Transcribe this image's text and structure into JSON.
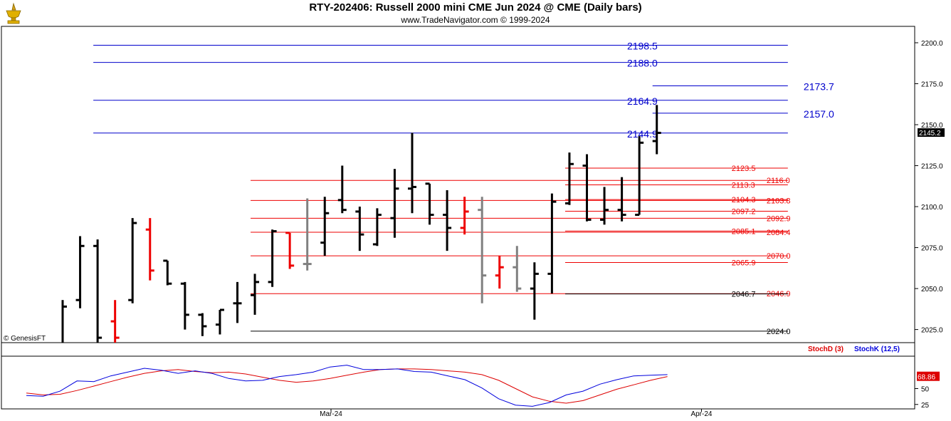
{
  "header": {
    "title": "RTY-202406:  Russell 2000 mini CME Jun 2024 @ CME  (Daily bars)",
    "subtitle": "www.TradeNavigator.com © 1999-2024",
    "logo_icon": "gold-trophy-icon"
  },
  "watermark": "© GenesisFT",
  "colors": {
    "up_bar": "#000000",
    "down_bar": "#ee0000",
    "gray_bar": "#808080",
    "support_line": "#ee0000",
    "resistance_line": "#0000cc",
    "stoch_d": "#dd0000",
    "stoch_k": "#0000dd",
    "last_price_bg": "#000000"
  },
  "chart_data": [
    {
      "type": "ohlc",
      "title": "RTY-202406 Daily bars",
      "ylim": [
        2017,
        2210
      ],
      "y_ticks": [
        "2025.0",
        "2050.0",
        "2075.0",
        "2100.0",
        "2125.0",
        "2150.0",
        "2175.0",
        "2200.0"
      ],
      "x_ticks": [
        {
          "label": "Mar-24",
          "bar_index": 15
        },
        {
          "label": "Apr-24",
          "bar_index": 36.2
        }
      ],
      "last_price_label": "2145.2",
      "bars": [
        {
          "o": 2015,
          "h": 2043,
          "l": 2015,
          "c": 2039,
          "k": "up"
        },
        {
          "o": 2043,
          "h": 2082,
          "l": 2038,
          "c": 2076,
          "k": "up"
        },
        {
          "o": 2076,
          "h": 2080,
          "l": 2015,
          "c": 2020,
          "k": "up"
        },
        {
          "o": 2030,
          "h": 2043,
          "l": 2015,
          "c": 2020,
          "k": "down"
        },
        {
          "o": 2043,
          "h": 2093,
          "l": 2041,
          "c": 2090,
          "k": "up"
        },
        {
          "o": 2086,
          "h": 2093,
          "l": 2055,
          "c": 2061,
          "k": "down"
        },
        {
          "o": 2067,
          "h": 2067,
          "l": 2052,
          "c": 2053,
          "k": "up"
        },
        {
          "o": 2053,
          "h": 2054,
          "l": 2025,
          "c": 2034,
          "k": "up"
        },
        {
          "o": 2034,
          "h": 2035,
          "l": 2021,
          "c": 2027,
          "k": "up"
        },
        {
          "o": 2028,
          "h": 2037,
          "l": 2022,
          "c": 2037,
          "k": "up"
        },
        {
          "o": 2041,
          "h": 2054,
          "l": 2029,
          "c": 2041,
          "k": "up"
        },
        {
          "o": 2046,
          "h": 2059,
          "l": 2034,
          "c": 2054,
          "k": "up"
        },
        {
          "o": 2054,
          "h": 2086,
          "l": 2051,
          "c": 2085,
          "k": "up"
        },
        {
          "o": 2084,
          "h": 2084,
          "l": 2062,
          "c": 2064,
          "k": "down"
        },
        {
          "o": 2065,
          "h": 2105,
          "l": 2061,
          "c": 2065,
          "k": "gray"
        },
        {
          "o": 2078,
          "h": 2106,
          "l": 2070,
          "c": 2096,
          "k": "up"
        },
        {
          "o": 2104,
          "h": 2125,
          "l": 2096,
          "c": 2098,
          "k": "up"
        },
        {
          "o": 2097,
          "h": 2100,
          "l": 2073,
          "c": 2083,
          "k": "up"
        },
        {
          "o": 2077,
          "h": 2099,
          "l": 2076,
          "c": 2095,
          "k": "up"
        },
        {
          "o": 2093,
          "h": 2123,
          "l": 2081,
          "c": 2111,
          "k": "up"
        },
        {
          "o": 2111,
          "h": 2145,
          "l": 2096,
          "c": 2112,
          "k": "up"
        },
        {
          "o": 2114,
          "h": 2114,
          "l": 2089,
          "c": 2095,
          "k": "up"
        },
        {
          "o": 2095,
          "h": 2110,
          "l": 2073,
          "c": 2087,
          "k": "up"
        },
        {
          "o": 2087,
          "h": 2106,
          "l": 2083,
          "c": 2097,
          "k": "down"
        },
        {
          "o": 2098,
          "h": 2106,
          "l": 2041,
          "c": 2058,
          "k": "gray"
        },
        {
          "o": 2058,
          "h": 2070,
          "l": 2050,
          "c": 2063,
          "k": "down"
        },
        {
          "o": 2063,
          "h": 2076,
          "l": 2048,
          "c": 2050,
          "k": "gray"
        },
        {
          "o": 2050,
          "h": 2066,
          "l": 2031,
          "c": 2059,
          "k": "up"
        },
        {
          "o": 2059,
          "h": 2108,
          "l": 2047,
          "c": 2103,
          "k": "up"
        },
        {
          "o": 2102,
          "h": 2133,
          "l": 2101,
          "c": 2126,
          "k": "up"
        },
        {
          "o": 2125,
          "h": 2132,
          "l": 2091,
          "c": 2092,
          "k": "up"
        },
        {
          "o": 2092,
          "h": 2112,
          "l": 2089,
          "c": 2098,
          "k": "up"
        },
        {
          "o": 2098,
          "h": 2118,
          "l": 2091,
          "c": 2095,
          "k": "up"
        },
        {
          "o": 2095,
          "h": 2143,
          "l": 2095,
          "c": 2139,
          "k": "up"
        },
        {
          "o": 2140,
          "h": 2162,
          "l": 2132,
          "c": 2145,
          "k": "up"
        }
      ],
      "levels": [
        {
          "label": "2198.5",
          "v": 2198.5,
          "c": "blue",
          "x0": 2,
          "x1": 41.5,
          "lx": 32.3,
          "la": "start"
        },
        {
          "label": "2188.0",
          "v": 2188.0,
          "c": "blue",
          "x0": 2,
          "x1": 41.5,
          "lx": 32.3,
          "la": "start"
        },
        {
          "label": "2173.7",
          "v": 2173.7,
          "c": "blue",
          "x0": 34,
          "x1": 41.5,
          "lx": 42.4,
          "la": "start"
        },
        {
          "label": "2164.9",
          "v": 2164.9,
          "c": "blue",
          "x0": 2,
          "x1": 41.5,
          "lx": 32.3,
          "la": "start"
        },
        {
          "label": "2157.0",
          "v": 2157.0,
          "c": "blue",
          "x0": 34,
          "x1": 41.5,
          "lx": 42.4,
          "la": "start"
        },
        {
          "label": "2144.9",
          "v": 2144.9,
          "c": "blue",
          "x0": 2,
          "x1": 41.5,
          "lx": 32.3,
          "la": "start"
        },
        {
          "label": "2123.5",
          "v": 2123.5,
          "c": "red",
          "x0": 29,
          "x1": 41.5,
          "lx": 38.2,
          "la": "start"
        },
        {
          "label": "2116.0",
          "v": 2116.0,
          "c": "red",
          "x0": 11,
          "x1": 41.5,
          "lx": 40.2,
          "la": "start"
        },
        {
          "label": "2113.3",
          "v": 2113.3,
          "c": "red",
          "x0": 29,
          "x1": 41.5,
          "lx": 38.2,
          "la": "start"
        },
        {
          "label": "2104.3",
          "v": 2104.3,
          "c": "red",
          "x0": 29,
          "x1": 41.5,
          "lx": 38.2,
          "la": "start"
        },
        {
          "label": "2103.8",
          "v": 2103.8,
          "c": "red",
          "x0": 11,
          "x1": 41.5,
          "lx": 40.2,
          "la": "start"
        },
        {
          "label": "2097.2",
          "v": 2097.2,
          "c": "red",
          "x0": 29,
          "x1": 41.5,
          "lx": 38.2,
          "la": "start"
        },
        {
          "label": "2092.9",
          "v": 2092.9,
          "c": "red",
          "x0": 11,
          "x1": 41.5,
          "lx": 40.2,
          "la": "start"
        },
        {
          "label": "2085.1",
          "v": 2085.1,
          "c": "red",
          "x0": 29,
          "x1": 41.5,
          "lx": 38.2,
          "la": "start"
        },
        {
          "label": "2084.4",
          "v": 2084.4,
          "c": "red",
          "x0": 11,
          "x1": 41.5,
          "lx": 40.2,
          "la": "start"
        },
        {
          "label": "2070.0",
          "v": 2070.0,
          "c": "red",
          "x0": 11,
          "x1": 41.5,
          "lx": 40.2,
          "la": "start"
        },
        {
          "label": "2065.9",
          "v": 2065.9,
          "c": "red",
          "x0": 29,
          "x1": 41.5,
          "lx": 38.2,
          "la": "start"
        },
        {
          "label": "2046.9",
          "v": 2046.9,
          "c": "red",
          "x0": 11,
          "x1": 41.5,
          "lx": 40.2,
          "la": "start"
        },
        {
          "label": "2046.7",
          "v": 2046.7,
          "c": "black",
          "x0": 29,
          "x1": 41.5,
          "lx": 38.2,
          "la": "start"
        },
        {
          "label": "2024.0",
          "v": 2024.0,
          "c": "black",
          "x0": 11,
          "x1": 41.5,
          "lx": 40.2,
          "la": "start"
        }
      ]
    },
    {
      "type": "line",
      "ylim": [
        18,
        100
      ],
      "y_ticks": [
        "25",
        "50"
      ],
      "last_value_label": "68.86",
      "series": [
        {
          "name": "StochD (3)",
          "color": "#dd0000",
          "values": [
            43,
            40,
            41,
            47,
            54,
            61,
            68,
            74,
            78,
            80,
            77,
            75,
            76,
            73,
            68,
            63,
            60,
            62,
            66,
            71,
            76,
            80,
            81,
            81,
            80,
            78,
            76,
            72,
            63,
            50,
            37,
            30,
            27,
            31,
            40,
            49,
            56,
            63,
            69
          ]
        },
        {
          "name": "StochK (12,5)",
          "color": "#0000dd",
          "values": [
            39,
            38,
            46,
            62,
            61,
            70,
            76,
            82,
            79,
            74,
            78,
            74,
            66,
            62,
            63,
            69,
            72,
            76,
            84,
            87,
            80,
            80,
            81,
            77,
            76,
            70,
            64,
            51,
            34,
            24,
            22,
            28,
            40,
            46,
            57,
            64,
            70,
            71,
            72
          ]
        }
      ]
    }
  ]
}
